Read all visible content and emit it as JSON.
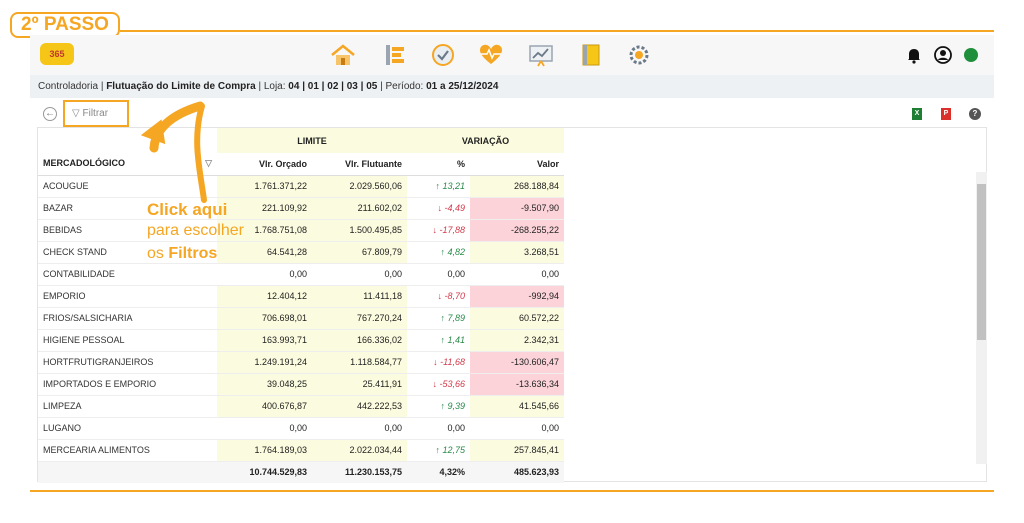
{
  "step_label": "2º PASSO",
  "logo_text": "365",
  "breadcrumb": {
    "prefix": "Controladoria | ",
    "title": "Flutuação do Limite de Compra",
    "loja_label": " | Loja: ",
    "loja": "04 | 01 | 02 | 03 | 05",
    "periodo_label": " | Período: ",
    "periodo": "01 a 25/12/2024"
  },
  "filter_label": "Filtrar",
  "header": {
    "limite": "LIMITE",
    "variacao": "VARIAÇÃO",
    "mercadologico": "MERCADOLÓGICO",
    "vlr_orcado": "Vlr. Orçado",
    "vlr_flutuante": "Vlr. Flutuante",
    "pct": "%",
    "valor": "Valor"
  },
  "rows": [
    {
      "name": "ACOUGUE",
      "orcado": "1.761.371,22",
      "flutuante": "2.029.560,06",
      "pct": "↑ 13,21",
      "valor": "268.188,84",
      "trend": "up"
    },
    {
      "name": "BAZAR",
      "orcado": "221.109,92",
      "flutuante": "211.602,02",
      "pct": "↓ -4,49",
      "valor": "-9.507,90",
      "trend": "dn"
    },
    {
      "name": "BEBIDAS",
      "orcado": "1.768.751,08",
      "flutuante": "1.500.495,85",
      "pct": "↓ -17,88",
      "valor": "-268.255,22",
      "trend": "dn"
    },
    {
      "name": "CHECK STAND",
      "orcado": "64.541,28",
      "flutuante": "67.809,79",
      "pct": "↑ 4,82",
      "valor": "3.268,51",
      "trend": "up"
    },
    {
      "name": "CONTABILIDADE",
      "orcado": "0,00",
      "flutuante": "0,00",
      "pct": "0,00",
      "valor": "0,00",
      "trend": "zero"
    },
    {
      "name": "EMPORIO",
      "orcado": "12.404,12",
      "flutuante": "11.411,18",
      "pct": "↓ -8,70",
      "valor": "-992,94",
      "trend": "dn"
    },
    {
      "name": "FRIOS/SALSICHARIA",
      "orcado": "706.698,01",
      "flutuante": "767.270,24",
      "pct": "↑ 7,89",
      "valor": "60.572,22",
      "trend": "up"
    },
    {
      "name": "HIGIENE PESSOAL",
      "orcado": "163.993,71",
      "flutuante": "166.336,02",
      "pct": "↑ 1,41",
      "valor": "2.342,31",
      "trend": "up"
    },
    {
      "name": "HORTFRUTIGRANJEIROS",
      "orcado": "1.249.191,24",
      "flutuante": "1.118.584,77",
      "pct": "↓ -11,68",
      "valor": "-130.606,47",
      "trend": "dn"
    },
    {
      "name": "IMPORTADOS E EMPORIO",
      "orcado": "39.048,25",
      "flutuante": "25.411,91",
      "pct": "↓ -53,66",
      "valor": "-13.636,34",
      "trend": "dn"
    },
    {
      "name": "LIMPEZA",
      "orcado": "400.676,87",
      "flutuante": "442.222,53",
      "pct": "↑ 9,39",
      "valor": "41.545,66",
      "trend": "up"
    },
    {
      "name": "LUGANO",
      "orcado": "0,00",
      "flutuante": "0,00",
      "pct": "0,00",
      "valor": "0,00",
      "trend": "zero"
    },
    {
      "name": "MERCEARIA ALIMENTOS",
      "orcado": "1.764.189,03",
      "flutuante": "2.022.034,44",
      "pct": "↑ 12,75",
      "valor": "257.845,41",
      "trend": "up"
    }
  ],
  "totals": {
    "orcado": "10.744.529,83",
    "flutuante": "11.230.153,75",
    "pct": "4,32%",
    "valor": "485.623,93"
  },
  "annotation": {
    "line1": "Click aqui",
    "line2": "para escolher",
    "line3_prefix": "os ",
    "line3_bold": "Filtros"
  },
  "colors": {
    "accent": "#f5a623",
    "positive": "#2a8a4a",
    "negative": "#d23a4a",
    "highlight": "#fbfbdf",
    "negative_bg": "#fbd3d9"
  },
  "nav_icons": [
    "home-icon",
    "list-icon",
    "check-circle-icon",
    "heart-pulse-icon",
    "chart-board-icon",
    "notebook-icon",
    "gear-cluster-icon"
  ]
}
